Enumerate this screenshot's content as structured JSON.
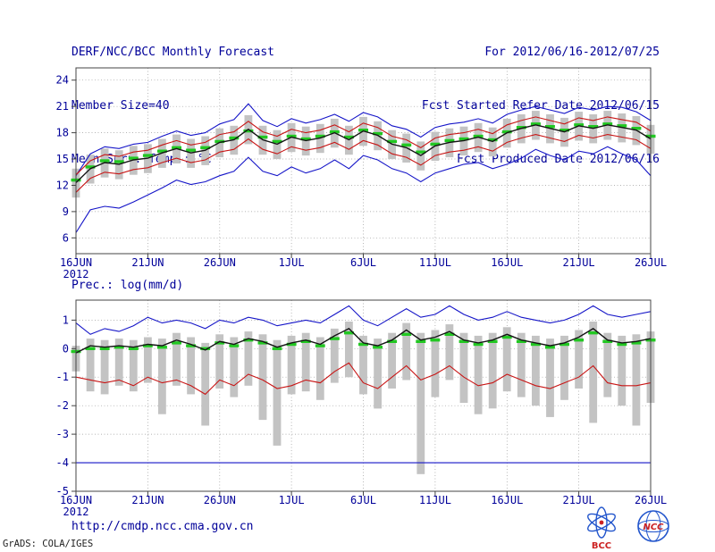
{
  "header": {
    "title": "DERF/NCC/BCC Monthly Forecast",
    "member_size": "Member Size=40",
    "temp_label": "Mean Surf. Temp.: °C",
    "for_range": "For 2012/06/16-2012/07/25",
    "fcst_started": "Fcst Started Refer Date 2012/06/15",
    "fcst_produced": "Fcst Produced Date 2012/06/16"
  },
  "prec_label": "Prec.: log(mm/d)",
  "footer": {
    "url": "http://cmdp.ncc.cma.gov.cn",
    "grads_credit": "GrADS: COLA/IGES",
    "logo_bcc": "BCC",
    "logo_ncc": "NCC"
  },
  "colors": {
    "annotation": "#000099",
    "frame": "#444444",
    "grid": "#9a9a9a",
    "ensemble_bound": "#1515c8",
    "percentile": "#c81515",
    "mean": "#141414",
    "climatology": "#22c822",
    "spread_bar": "#c3c3c3",
    "logo_blue": "#2255cc",
    "logo_red": "#cc2222"
  },
  "chart_data": [
    {
      "type": "line",
      "title": "Mean Surf. Temp.: °C",
      "xlabel": "",
      "ylabel": "°C",
      "ylim": [
        4.2,
        25.4
      ],
      "yticks": [
        6,
        9,
        12,
        15,
        18,
        21,
        24
      ],
      "grid": true,
      "legend_position": "none",
      "n_points": 41,
      "x_tick_labels": [
        "16JUN",
        "21JUN",
        "26JUN",
        "1JUL",
        "6JUL",
        "11JUL",
        "16JUL",
        "21JUL",
        "26JUL"
      ],
      "x_tick_indices": [
        0,
        5,
        10,
        15,
        20,
        25,
        30,
        35,
        40
      ],
      "x_year": "2012",
      "series": [
        {
          "name": "ensemble-max",
          "color": "#1515c8",
          "width": 1.1,
          "values": [
            13.1,
            15.6,
            16.4,
            16.2,
            16.7,
            16.9,
            17.6,
            18.2,
            17.7,
            18.0,
            19.0,
            19.5,
            21.3,
            19.4,
            18.7,
            19.6,
            19.1,
            19.5,
            20.1,
            19.3,
            20.3,
            19.8,
            18.8,
            18.4,
            17.5,
            18.6,
            19.0,
            19.2,
            19.6,
            19.1,
            20.1,
            20.6,
            21.0,
            20.6,
            20.2,
            20.9,
            20.6,
            21.0,
            20.9,
            20.4,
            19.4
          ]
        },
        {
          "name": "ensemble-min",
          "color": "#1515c8",
          "width": 1.1,
          "values": [
            6.6,
            9.2,
            9.6,
            9.4,
            10.1,
            10.9,
            11.7,
            12.6,
            12.1,
            12.4,
            13.1,
            13.6,
            15.2,
            13.6,
            13.1,
            14.1,
            13.4,
            13.9,
            14.9,
            13.9,
            15.4,
            14.9,
            13.9,
            13.4,
            12.4,
            13.4,
            13.9,
            14.4,
            14.6,
            13.9,
            14.4,
            15.1,
            16.1,
            15.4,
            14.9,
            15.9,
            15.6,
            16.4,
            15.6,
            14.9,
            13.1
          ]
        },
        {
          "name": "upper-percentile",
          "color": "#c81515",
          "width": 1.1,
          "values": [
            13.2,
            14.8,
            15.5,
            15.3,
            15.8,
            16.0,
            16.6,
            17.1,
            16.6,
            16.9,
            17.8,
            18.1,
            19.3,
            18.1,
            17.6,
            18.4,
            18.0,
            18.3,
            18.9,
            18.1,
            19.1,
            18.6,
            17.6,
            17.2,
            16.3,
            17.4,
            17.8,
            18.0,
            18.4,
            17.9,
            18.9,
            19.4,
            19.8,
            19.4,
            19.0,
            19.7,
            19.4,
            19.8,
            19.5,
            19.2,
            18.2
          ]
        },
        {
          "name": "lower-percentile",
          "color": "#c81515",
          "width": 1.1,
          "values": [
            11.2,
            12.8,
            13.5,
            13.3,
            13.8,
            14.0,
            14.6,
            15.1,
            14.6,
            14.9,
            15.8,
            16.1,
            17.3,
            16.1,
            15.6,
            16.4,
            16.0,
            16.3,
            16.9,
            16.1,
            17.1,
            16.6,
            15.6,
            15.2,
            14.3,
            15.4,
            15.8,
            16.0,
            16.4,
            15.9,
            16.9,
            17.4,
            17.8,
            17.4,
            17.0,
            17.7,
            17.4,
            17.8,
            17.5,
            17.2,
            16.2
          ]
        },
        {
          "name": "ensemble-mean",
          "color": "#141414",
          "width": 1.4,
          "values": [
            12.3,
            13.9,
            14.6,
            14.4,
            14.9,
            15.1,
            15.7,
            16.2,
            15.7,
            16.0,
            16.9,
            17.2,
            18.4,
            17.2,
            16.7,
            17.5,
            17.1,
            17.4,
            18.0,
            17.2,
            18.2,
            17.7,
            16.7,
            16.3,
            15.4,
            16.5,
            16.9,
            17.1,
            17.5,
            17.0,
            18.0,
            18.5,
            18.9,
            18.5,
            18.1,
            18.8,
            18.5,
            18.9,
            18.6,
            18.3,
            17.3
          ]
        }
      ],
      "climatology": [
        12.6,
        14.1,
        14.8,
        14.7,
        15.1,
        15.4,
        15.9,
        16.3,
        16.0,
        16.3,
        17.0,
        17.4,
        18.2,
        17.5,
        17.0,
        17.6,
        17.3,
        17.6,
        18.1,
        17.5,
        18.3,
        17.9,
        17.0,
        16.6,
        15.8,
        16.7,
        17.1,
        17.3,
        17.6,
        17.2,
        18.1,
        18.6,
        19.0,
        18.7,
        18.3,
        18.9,
        18.7,
        19.0,
        18.8,
        18.5,
        17.6
      ],
      "spread_bars": {
        "top": [
          13.9,
          15.5,
          16.2,
          16.0,
          16.5,
          16.7,
          17.3,
          17.8,
          17.3,
          17.6,
          18.5,
          18.8,
          20.0,
          18.8,
          18.3,
          19.1,
          18.7,
          19.0,
          19.6,
          18.8,
          19.8,
          19.3,
          18.3,
          17.9,
          17.0,
          18.1,
          18.5,
          18.7,
          19.1,
          18.6,
          19.6,
          20.1,
          20.5,
          20.1,
          19.7,
          20.4,
          20.1,
          20.5,
          20.2,
          19.9,
          18.9
        ],
        "bottom": [
          10.6,
          12.2,
          12.9,
          12.7,
          13.2,
          13.4,
          14.0,
          14.5,
          14.0,
          14.3,
          15.2,
          15.5,
          16.7,
          15.5,
          15.0,
          15.8,
          15.4,
          15.7,
          16.3,
          15.5,
          16.5,
          16.0,
          15.0,
          14.6,
          13.7,
          14.8,
          15.2,
          15.4,
          15.8,
          15.3,
          16.3,
          16.8,
          17.2,
          16.8,
          16.4,
          17.1,
          16.8,
          17.2,
          16.9,
          16.6,
          15.6
        ]
      }
    },
    {
      "type": "line",
      "title": "Prec.: log(mm/d)",
      "xlabel": "",
      "ylabel": "log(mm/d)",
      "ylim": [
        -5.0,
        1.7
      ],
      "yticks": [
        -5,
        -4,
        -3,
        -2,
        -1,
        0,
        1
      ],
      "grid": true,
      "legend_position": "none",
      "n_points": 41,
      "x_tick_labels": [
        "16JUN",
        "21JUN",
        "26JUN",
        "1JUL",
        "6JUL",
        "11JUL",
        "16JUL",
        "21JUL",
        "26JUL"
      ],
      "x_tick_indices": [
        0,
        5,
        10,
        15,
        20,
        25,
        30,
        35,
        40
      ],
      "x_year": "2012",
      "series": [
        {
          "name": "ensemble-max",
          "color": "#1515c8",
          "width": 1.1,
          "values": [
            0.9,
            0.5,
            0.7,
            0.6,
            0.8,
            1.1,
            0.9,
            1.0,
            0.9,
            0.7,
            1.0,
            0.9,
            1.1,
            1.0,
            0.8,
            0.9,
            1.0,
            0.9,
            1.2,
            1.5,
            1.0,
            0.8,
            1.1,
            1.4,
            1.1,
            1.2,
            1.5,
            1.2,
            1.0,
            1.1,
            1.3,
            1.1,
            1.0,
            0.9,
            1.0,
            1.2,
            1.5,
            1.2,
            1.1,
            1.2,
            1.3
          ]
        },
        {
          "name": "ensemble-min-floor",
          "color": "#1515c8",
          "width": 1.1,
          "values": [
            -4,
            -4,
            -4,
            -4,
            -4,
            -4,
            -4,
            -4,
            -4,
            -4,
            -4,
            -4,
            -4,
            -4,
            -4,
            -4,
            -4,
            -4,
            -4,
            -4,
            -4,
            -4,
            -4,
            -4,
            -4,
            -4,
            -4,
            -4,
            -4,
            -4,
            -4,
            -4,
            -4,
            -4,
            -4,
            -4,
            -4,
            -4,
            -4,
            -4,
            -4
          ]
        },
        {
          "name": "lower-percentile",
          "color": "#c81515",
          "width": 1.1,
          "values": [
            -1.0,
            -1.1,
            -1.2,
            -1.1,
            -1.3,
            -1.0,
            -1.2,
            -1.1,
            -1.3,
            -1.6,
            -1.1,
            -1.3,
            -0.9,
            -1.1,
            -1.4,
            -1.3,
            -1.1,
            -1.2,
            -0.8,
            -0.5,
            -1.2,
            -1.4,
            -1.0,
            -0.6,
            -1.1,
            -0.9,
            -0.6,
            -1.0,
            -1.3,
            -1.2,
            -0.9,
            -1.1,
            -1.3,
            -1.4,
            -1.2,
            -1.0,
            -0.6,
            -1.2,
            -1.3,
            -1.3,
            -1.2
          ]
        },
        {
          "name": "ensemble-mean",
          "color": "#141414",
          "width": 1.4,
          "values": [
            -0.15,
            0.1,
            0.05,
            0.1,
            0.05,
            0.15,
            0.1,
            0.3,
            0.15,
            -0.05,
            0.25,
            0.15,
            0.35,
            0.25,
            0.05,
            0.2,
            0.3,
            0.15,
            0.45,
            0.7,
            0.2,
            0.1,
            0.3,
            0.65,
            0.3,
            0.4,
            0.6,
            0.3,
            0.2,
            0.3,
            0.5,
            0.3,
            0.2,
            0.1,
            0.2,
            0.4,
            0.7,
            0.3,
            0.2,
            0.25,
            0.35
          ]
        }
      ],
      "climatology": [
        -0.1,
        0.0,
        0.0,
        0.05,
        0.0,
        0.1,
        0.05,
        0.2,
        0.1,
        0.0,
        0.2,
        0.1,
        0.3,
        0.2,
        0.0,
        0.15,
        0.25,
        0.1,
        0.35,
        0.55,
        0.15,
        0.05,
        0.25,
        0.5,
        0.25,
        0.3,
        0.5,
        0.25,
        0.15,
        0.25,
        0.4,
        0.25,
        0.15,
        0.05,
        0.15,
        0.3,
        0.55,
        0.25,
        0.15,
        0.2,
        0.3
      ],
      "spread_bars": {
        "top": [
          0.1,
          0.35,
          0.3,
          0.35,
          0.3,
          0.4,
          0.35,
          0.55,
          0.4,
          0.2,
          0.5,
          0.4,
          0.6,
          0.5,
          0.3,
          0.45,
          0.55,
          0.4,
          0.7,
          0.95,
          0.45,
          0.35,
          0.55,
          0.9,
          0.55,
          0.65,
          0.85,
          0.55,
          0.45,
          0.55,
          0.75,
          0.55,
          0.45,
          0.35,
          0.45,
          0.65,
          0.95,
          0.55,
          0.45,
          0.5,
          0.6
        ],
        "bottom": [
          -0.8,
          -1.5,
          -1.6,
          -1.3,
          -1.5,
          -1.2,
          -2.3,
          -1.3,
          -1.6,
          -2.7,
          -1.4,
          -1.7,
          -1.3,
          -2.5,
          -3.4,
          -1.6,
          -1.5,
          -1.8,
          -1.2,
          -1.0,
          -1.6,
          -2.1,
          -1.4,
          -1.1,
          -4.4,
          -1.7,
          -1.1,
          -1.9,
          -2.3,
          -2.1,
          -1.5,
          -1.7,
          -2.0,
          -2.4,
          -1.8,
          -1.4,
          -2.6,
          -1.7,
          -2.0,
          -2.7,
          -1.9
        ]
      }
    }
  ]
}
